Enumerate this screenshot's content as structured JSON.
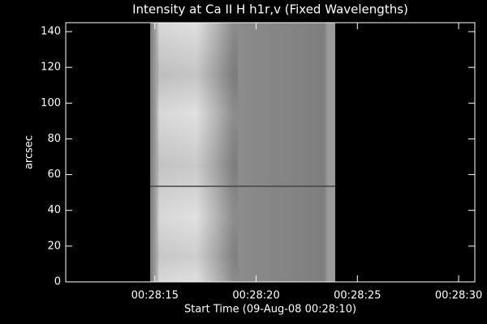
{
  "chart_data": {
    "type": "image",
    "title": "Intensity at Ca II H h1r,v (Fixed Wavelengths)",
    "x_label": "Start Time (09-Aug-08 00:28:10)",
    "y_label": "arcsec",
    "xlim": [
      10.6,
      30.8
    ],
    "xticks": [
      {
        "value": 15,
        "label": "00:28:15"
      },
      {
        "value": 20,
        "label": "00:28:20"
      },
      {
        "value": 25,
        "label": "00:28:25"
      },
      {
        "value": 30,
        "label": "00:28:30"
      }
    ],
    "ylim": [
      0,
      145
    ],
    "yticks": [
      0,
      20,
      40,
      60,
      80,
      100,
      120,
      140
    ]
  }
}
